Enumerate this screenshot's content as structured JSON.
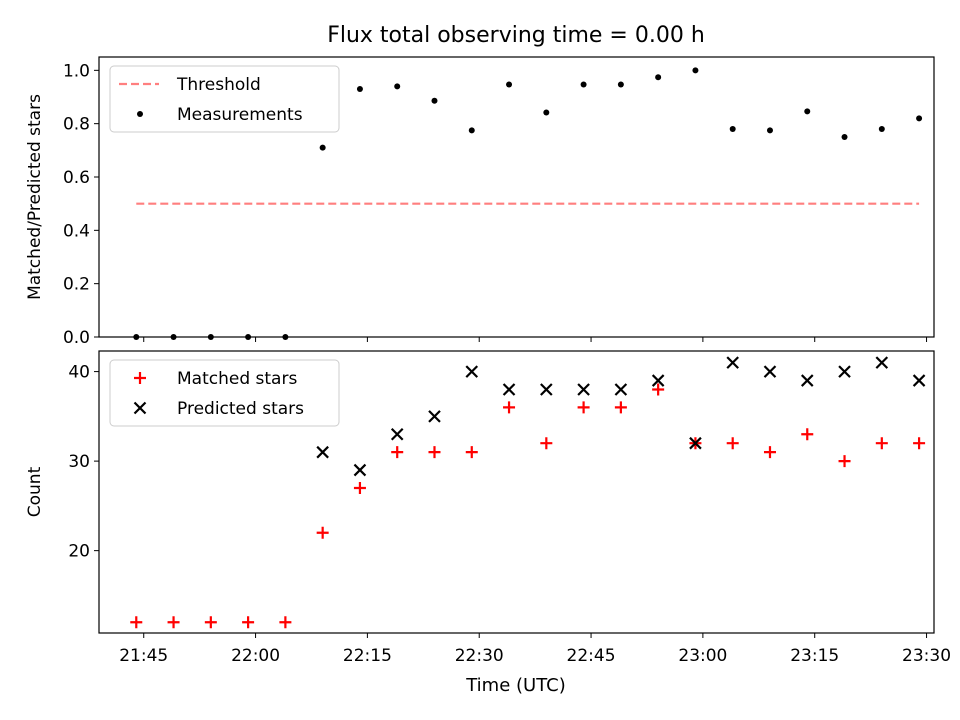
{
  "title": "Flux total observing time = 0.00 h",
  "xlabel": "Time (UTC)",
  "colors": {
    "threshold": "#ff7f7f",
    "measurement": "#000000",
    "matched": "#ff0000",
    "predicted": "#000000"
  },
  "chart_data": [
    {
      "type": "scatter",
      "title": "Flux total observing time = 0.00 h",
      "xlabel": "",
      "ylabel": "Matched/Predicted stars",
      "xlim": [
        "21:39:00",
        "23:31:00"
      ],
      "ylim": [
        0.0,
        1.05
      ],
      "xticks": [
        "21:45",
        "22:00",
        "22:15",
        "22:30",
        "22:45",
        "23:00",
        "23:15",
        "23:30"
      ],
      "yticks": [
        "0.0",
        "0.2",
        "0.4",
        "0.6",
        "0.8",
        "1.0"
      ],
      "ytick_values": [
        0.0,
        0.2,
        0.4,
        0.6,
        0.8,
        1.0
      ],
      "legend_position": "upper-left",
      "grid": false,
      "x": [
        "21:44",
        "21:49",
        "21:54",
        "21:59",
        "22:04",
        "22:09",
        "22:14",
        "22:19",
        "22:24",
        "22:29",
        "22:34",
        "22:39",
        "22:44",
        "22:49",
        "22:54",
        "22:59",
        "23:04",
        "23:09",
        "23:14",
        "23:19",
        "23:24",
        "23:29"
      ],
      "series": [
        {
          "name": "Threshold",
          "style": "dashed-line",
          "x": [
            "21:44",
            "23:29"
          ],
          "values": [
            0.5,
            0.5
          ]
        },
        {
          "name": "Measurements",
          "style": "dot",
          "values": [
            0.0,
            0.0,
            0.0,
            0.0,
            0.0,
            0.71,
            0.93,
            0.94,
            0.886,
            0.775,
            0.947,
            0.842,
            0.947,
            0.947,
            0.974,
            1.0,
            0.78,
            0.775,
            0.846,
            0.75,
            0.78,
            0.82
          ]
        }
      ]
    },
    {
      "type": "scatter",
      "xlabel": "Time (UTC)",
      "ylabel": "Count",
      "xlim": [
        "21:39:00",
        "23:31:00"
      ],
      "ylim": [
        10.8,
        42.3
      ],
      "xticks": [
        "21:45",
        "22:00",
        "22:15",
        "22:30",
        "22:45",
        "23:00",
        "23:15",
        "23:30"
      ],
      "yticks": [
        "20",
        "30",
        "40"
      ],
      "ytick_values": [
        20,
        30,
        40
      ],
      "legend_position": "upper-left",
      "grid": false,
      "x": [
        "21:44",
        "21:49",
        "21:54",
        "21:59",
        "22:04",
        "22:09",
        "22:14",
        "22:19",
        "22:24",
        "22:29",
        "22:34",
        "22:39",
        "22:44",
        "22:49",
        "22:54",
        "22:59",
        "23:04",
        "23:09",
        "23:14",
        "23:19",
        "23:24",
        "23:29"
      ],
      "series": [
        {
          "name": "Matched stars",
          "style": "plus",
          "values": [
            12,
            12,
            12,
            12,
            12,
            22,
            27,
            31,
            31,
            31,
            36,
            32,
            36,
            36,
            38,
            32,
            32,
            31,
            33,
            30,
            32,
            32
          ]
        },
        {
          "name": "Predicted stars",
          "style": "x",
          "values": [
            null,
            null,
            null,
            null,
            null,
            31,
            29,
            33,
            35,
            40,
            38,
            38,
            38,
            38,
            39,
            32,
            41,
            40,
            39,
            40,
            41,
            39
          ]
        }
      ]
    }
  ]
}
